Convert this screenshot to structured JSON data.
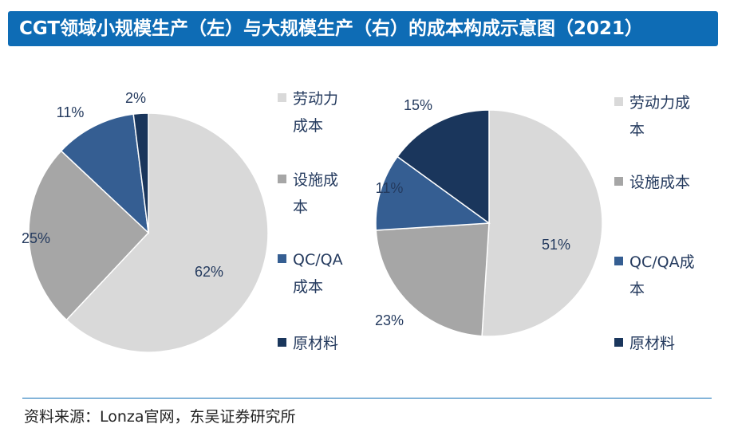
{
  "header": {
    "title": "CGT领域小规模生产（左）与大规模生产（右）的成本构成示意图（2021）"
  },
  "footer": {
    "source": "资料来源：Lonza官网，东吴证券研究所"
  },
  "colors": {
    "header_bg": "#0e6cb5",
    "labor": "#d9d9d9",
    "facility": "#a6a6a6",
    "qcqa": "#355e92",
    "material": "#1a365c"
  },
  "chart_data": [
    {
      "type": "pie",
      "title": "",
      "categories": [
        "劳动力成本",
        "设施成本",
        "QC/QA成本",
        "原材料"
      ],
      "values": [
        62,
        25,
        11,
        2
      ],
      "value_labels": [
        "62%",
        "25%",
        "11%",
        "2%"
      ],
      "legend": {
        "placement": "right",
        "lines": [
          [
            "劳动力",
            "成本"
          ],
          [
            "设施成",
            "本"
          ],
          [
            "QC/QA",
            "成本"
          ],
          [
            "原材料"
          ]
        ]
      }
    },
    {
      "type": "pie",
      "title": "",
      "categories": [
        "劳动力成本",
        "设施成本",
        "QC/QA成本",
        "原材料"
      ],
      "values": [
        51,
        23,
        11,
        15
      ],
      "value_labels": [
        "51%",
        "23%",
        "11%",
        "15%"
      ],
      "legend": {
        "placement": "right",
        "lines": [
          [
            "劳动力成",
            "本"
          ],
          [
            "设施成本"
          ],
          [
            "QC/QA成",
            "本"
          ],
          [
            "原材料"
          ]
        ]
      }
    }
  ]
}
